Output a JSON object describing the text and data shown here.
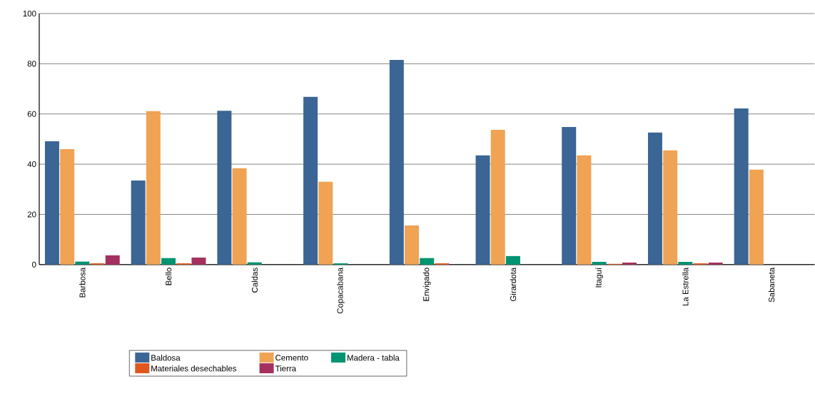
{
  "chart_data": {
    "type": "bar",
    "categories": [
      "Barbosa",
      "Bello",
      "Caldas",
      "Copacabana",
      "Envigado",
      "Girardota",
      "Itaguí",
      "La Estrella",
      "Sabaneta"
    ],
    "series": [
      {
        "name": "Baldosa",
        "color": "#3a6595",
        "values": [
          49.1,
          33.5,
          61.3,
          66.8,
          81.5,
          43.5,
          54.8,
          52.6,
          62.2
        ]
      },
      {
        "name": "Cemento",
        "color": "#efa353",
        "values": [
          46,
          61.1,
          38.4,
          33,
          15.6,
          53.7,
          43.5,
          45.5,
          37.8
        ]
      },
      {
        "name": "Madera - tabla",
        "color": "#009471",
        "values": [
          1.2,
          2.6,
          0.9,
          0.5,
          2.6,
          3.4,
          1.1,
          1.1,
          0
        ]
      },
      {
        "name": "Materiales desechables",
        "color": "#e0561f",
        "values": [
          0.5,
          0.5,
          0,
          0,
          0.5,
          0,
          0.3,
          0.5,
          0
        ]
      },
      {
        "name": "Tierra",
        "color": "#a3305f",
        "values": [
          3.7,
          2.8,
          0,
          0,
          0,
          0,
          0.8,
          0.8,
          0
        ]
      }
    ],
    "ylim": [
      0,
      100
    ],
    "yticks": [
      0,
      20,
      40,
      60,
      80,
      100
    ],
    "grid": "y",
    "legend": "bottom"
  }
}
